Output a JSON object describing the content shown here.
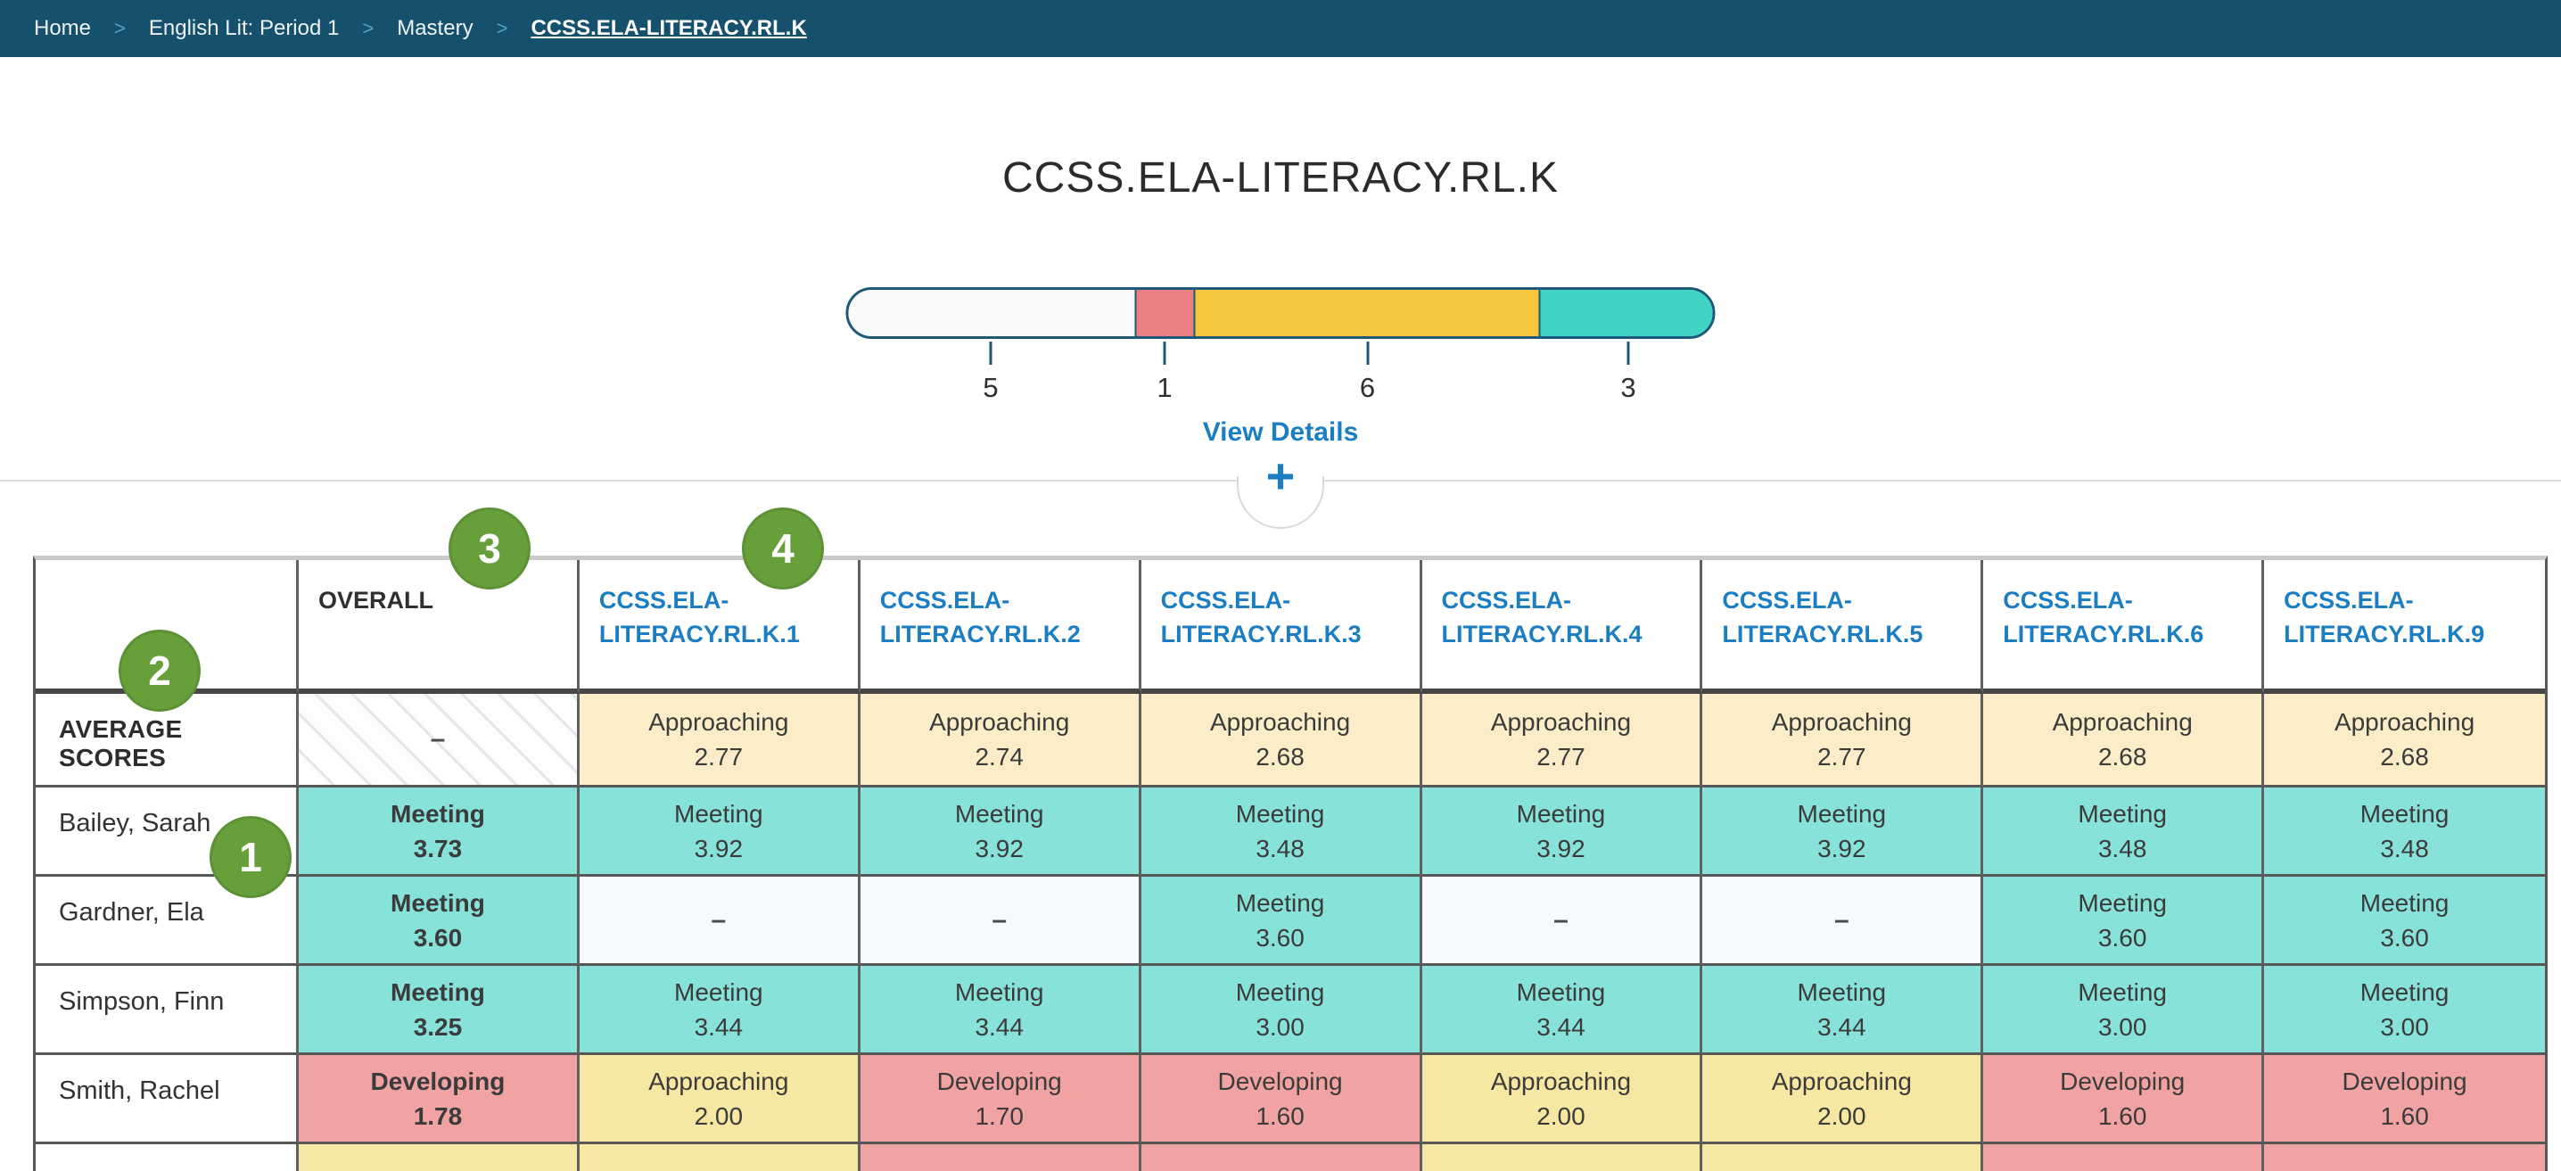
{
  "theme": {
    "topbar_bg": "#15506c",
    "link_blue": "#1b7ec3",
    "badge_green": "#67a03b",
    "bar_border": "#1d5878"
  },
  "breadcrumb": {
    "separator": ">",
    "items": [
      {
        "label": "Home",
        "current": false
      },
      {
        "label": "English Lit: Period 1",
        "current": false
      },
      {
        "label": "Mastery",
        "current": false
      },
      {
        "label": "CCSS.ELA-LITERACY.RL.K",
        "current": true
      }
    ]
  },
  "header": {
    "title": "CCSS.ELA-LITERACY.RL.K"
  },
  "distribution": {
    "view_details_label": "View Details",
    "expand_icon": "+",
    "segments": [
      {
        "label": "5",
        "count": 5,
        "color": "#f8fafc"
      },
      {
        "label": "1",
        "count": 1,
        "color": "#ea7f81"
      },
      {
        "label": "6",
        "count": 6,
        "color": "#f5c73d"
      },
      {
        "label": "3",
        "count": 3,
        "color": "#41d3c4"
      }
    ]
  },
  "annotation_badges": [
    {
      "number": "1"
    },
    {
      "number": "2"
    },
    {
      "number": "3"
    },
    {
      "number": "4"
    }
  ],
  "mastery_table": {
    "level_colors": {
      "meeting": "#87e2d9",
      "approaching": "#f6e7a2",
      "approaching_average": "#fbedc8",
      "developing": "#f1a3a4",
      "empty": "#f7fafc"
    },
    "columns": [
      {
        "key": "students",
        "type": "name",
        "label": ""
      },
      {
        "key": "overall",
        "type": "overall",
        "label": "OVERALL"
      },
      {
        "key": "rl-k-1",
        "type": "standard",
        "label": "CCSS.ELA-LITERACY.RL.K.1"
      },
      {
        "key": "rl-k-2",
        "type": "standard",
        "label": "CCSS.ELA-LITERACY.RL.K.2"
      },
      {
        "key": "rl-k-3",
        "type": "standard",
        "label": "CCSS.ELA-LITERACY.RL.K.3"
      },
      {
        "key": "rl-k-4",
        "type": "standard",
        "label": "CCSS.ELA-LITERACY.RL.K.4"
      },
      {
        "key": "rl-k-5",
        "type": "standard",
        "label": "CCSS.ELA-LITERACY.RL.K.5"
      },
      {
        "key": "rl-k-6",
        "type": "standard",
        "label": "CCSS.ELA-LITERACY.RL.K.6"
      },
      {
        "key": "rl-k-9",
        "type": "standard",
        "label": "CCSS.ELA-LITERACY.RL.K.9"
      }
    ],
    "rows": [
      {
        "name": "AVERAGE SCORES",
        "type": "average",
        "cells": [
          {
            "level": "hatched",
            "label": "–"
          },
          {
            "level": "approaching",
            "label": "Approaching",
            "value": "2.77"
          },
          {
            "level": "approaching",
            "label": "Approaching",
            "value": "2.74"
          },
          {
            "level": "approaching",
            "label": "Approaching",
            "value": "2.68"
          },
          {
            "level": "approaching",
            "label": "Approaching",
            "value": "2.77"
          },
          {
            "level": "approaching",
            "label": "Approaching",
            "value": "2.77"
          },
          {
            "level": "approaching",
            "label": "Approaching",
            "value": "2.68"
          },
          {
            "level": "approaching",
            "label": "Approaching",
            "value": "2.68"
          }
        ]
      },
      {
        "name": "Bailey, Sarah",
        "type": "student",
        "cells": [
          {
            "level": "meeting",
            "label": "Meeting",
            "value": "3.73"
          },
          {
            "level": "meeting",
            "label": "Meeting",
            "value": "3.92"
          },
          {
            "level": "meeting",
            "label": "Meeting",
            "value": "3.92"
          },
          {
            "level": "meeting",
            "label": "Meeting",
            "value": "3.48"
          },
          {
            "level": "meeting",
            "label": "Meeting",
            "value": "3.92"
          },
          {
            "level": "meeting",
            "label": "Meeting",
            "value": "3.92"
          },
          {
            "level": "meeting",
            "label": "Meeting",
            "value": "3.48"
          },
          {
            "level": "meeting",
            "label": "Meeting",
            "value": "3.48"
          }
        ]
      },
      {
        "name": "Gardner, Ela",
        "type": "student",
        "cells": [
          {
            "level": "meeting",
            "label": "Meeting",
            "value": "3.60"
          },
          {
            "level": "empty",
            "label": "–"
          },
          {
            "level": "empty",
            "label": "–"
          },
          {
            "level": "meeting",
            "label": "Meeting",
            "value": "3.60"
          },
          {
            "level": "empty",
            "label": "–"
          },
          {
            "level": "empty",
            "label": "–"
          },
          {
            "level": "meeting",
            "label": "Meeting",
            "value": "3.60"
          },
          {
            "level": "meeting",
            "label": "Meeting",
            "value": "3.60"
          }
        ]
      },
      {
        "name": "Simpson, Finn",
        "type": "student",
        "cells": [
          {
            "level": "meeting",
            "label": "Meeting",
            "value": "3.25"
          },
          {
            "level": "meeting",
            "label": "Meeting",
            "value": "3.44"
          },
          {
            "level": "meeting",
            "label": "Meeting",
            "value": "3.44"
          },
          {
            "level": "meeting",
            "label": "Meeting",
            "value": "3.00"
          },
          {
            "level": "meeting",
            "label": "Meeting",
            "value": "3.44"
          },
          {
            "level": "meeting",
            "label": "Meeting",
            "value": "3.44"
          },
          {
            "level": "meeting",
            "label": "Meeting",
            "value": "3.00"
          },
          {
            "level": "meeting",
            "label": "Meeting",
            "value": "3.00"
          }
        ]
      },
      {
        "name": "Smith, Rachel",
        "type": "student",
        "cells": [
          {
            "level": "developing",
            "label": "Developing",
            "value": "1.78"
          },
          {
            "level": "approaching",
            "label": "Approaching",
            "value": "2.00"
          },
          {
            "level": "developing",
            "label": "Developing",
            "value": "1.70"
          },
          {
            "level": "developing",
            "label": "Developing",
            "value": "1.60"
          },
          {
            "level": "approaching",
            "label": "Approaching",
            "value": "2.00"
          },
          {
            "level": "approaching",
            "label": "Approaching",
            "value": "2.00"
          },
          {
            "level": "developing",
            "label": "Developing",
            "value": "1.60"
          },
          {
            "level": "developing",
            "label": "Developing",
            "value": "1.60"
          }
        ]
      }
    ],
    "partial_next_row_levels": [
      "plain",
      "approaching",
      "approaching",
      "developing",
      "developing",
      "approaching",
      "approaching",
      "developing",
      "developing"
    ]
  }
}
